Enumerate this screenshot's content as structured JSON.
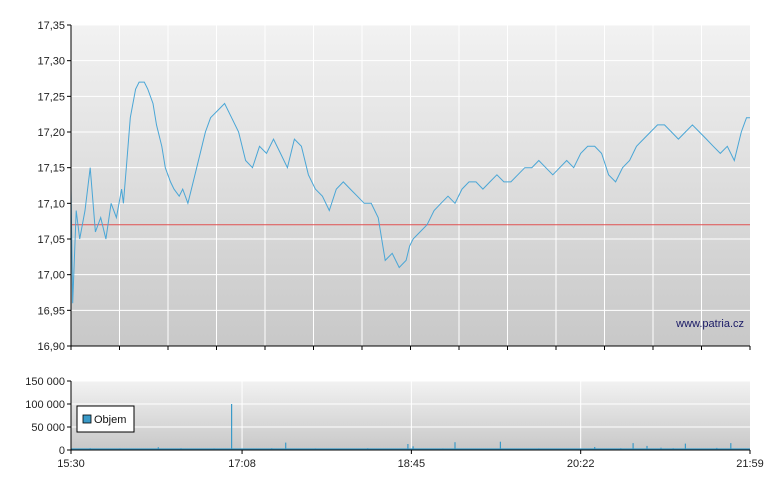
{
  "watermark": "www.patria.cz",
  "colors": {
    "price_line": "#4aa6d6",
    "reference_line": "#e05050",
    "volume_bar": "#3a9ac8",
    "grid": "#ffffff",
    "plot_top": "#f2f2f2",
    "plot_bottom": "#c8c8c8",
    "axis": "#000000"
  },
  "chart_data": [
    {
      "type": "line",
      "name": "price",
      "y_ticks": [
        "17,35",
        "17,30",
        "17,25",
        "17,20",
        "17,15",
        "17,10",
        "17,05",
        "17,00",
        "16,95",
        "16,90"
      ],
      "y_tick_values": [
        17.35,
        17.3,
        17.25,
        17.2,
        17.15,
        17.1,
        17.05,
        17.0,
        16.95,
        16.9
      ],
      "ylim": [
        16.9,
        17.35
      ],
      "x_range_minutes": [
        930,
        1319
      ],
      "reference_value": 17.07,
      "grid": true,
      "x": [
        "15:30",
        "15:31",
        "15:33",
        "15:35",
        "15:38",
        "15:41",
        "15:44",
        "15:47",
        "15:50",
        "15:53",
        "15:56",
        "15:59",
        "16:00",
        "16:02",
        "16:04",
        "16:07",
        "16:09",
        "16:12",
        "16:14",
        "16:17",
        "16:19",
        "16:22",
        "16:24",
        "16:27",
        "16:29",
        "16:32",
        "16:34",
        "16:37",
        "16:40",
        "16:44",
        "16:47",
        "16:50",
        "16:54",
        "16:58",
        "17:02",
        "17:06",
        "17:10",
        "17:14",
        "17:18",
        "17:22",
        "17:26",
        "17:30",
        "17:34",
        "17:38",
        "17:42",
        "17:46",
        "17:50",
        "17:54",
        "17:58",
        "18:02",
        "18:06",
        "18:10",
        "18:14",
        "18:18",
        "18:22",
        "18:26",
        "18:30",
        "18:34",
        "18:38",
        "18:42",
        "18:44",
        "18:46",
        "18:50",
        "18:54",
        "18:58",
        "19:02",
        "19:06",
        "19:10",
        "19:14",
        "19:18",
        "19:22",
        "19:26",
        "19:30",
        "19:34",
        "19:38",
        "19:42",
        "19:46",
        "19:50",
        "19:54",
        "19:58",
        "20:02",
        "20:06",
        "20:10",
        "20:14",
        "20:18",
        "20:22",
        "20:26",
        "20:30",
        "20:34",
        "20:38",
        "20:42",
        "20:46",
        "20:50",
        "20:54",
        "20:58",
        "21:02",
        "21:06",
        "21:10",
        "21:14",
        "21:18",
        "21:22",
        "21:26",
        "21:30",
        "21:34",
        "21:38",
        "21:42",
        "21:46",
        "21:50",
        "21:54",
        "21:57",
        "21:59"
      ],
      "values": [
        17.12,
        16.96,
        17.09,
        17.05,
        17.09,
        17.15,
        17.06,
        17.08,
        17.05,
        17.1,
        17.08,
        17.12,
        17.1,
        17.16,
        17.22,
        17.26,
        17.27,
        17.27,
        17.26,
        17.24,
        17.21,
        17.18,
        17.15,
        17.13,
        17.12,
        17.11,
        17.12,
        17.1,
        17.13,
        17.17,
        17.2,
        17.22,
        17.23,
        17.24,
        17.22,
        17.2,
        17.16,
        17.15,
        17.18,
        17.17,
        17.19,
        17.17,
        17.15,
        17.19,
        17.18,
        17.14,
        17.12,
        17.11,
        17.09,
        17.12,
        17.13,
        17.12,
        17.11,
        17.1,
        17.1,
        17.08,
        17.02,
        17.03,
        17.01,
        17.02,
        17.04,
        17.05,
        17.06,
        17.07,
        17.09,
        17.1,
        17.11,
        17.1,
        17.12,
        17.13,
        17.13,
        17.12,
        17.13,
        17.14,
        17.13,
        17.13,
        17.14,
        17.15,
        17.15,
        17.16,
        17.15,
        17.14,
        17.15,
        17.16,
        17.15,
        17.17,
        17.18,
        17.18,
        17.17,
        17.14,
        17.13,
        17.15,
        17.16,
        17.18,
        17.19,
        17.2,
        17.21,
        17.21,
        17.2,
        17.19,
        17.2,
        17.21,
        17.2,
        17.19,
        17.18,
        17.17,
        17.18,
        17.16,
        17.2,
        17.22,
        17.22
      ]
    },
    {
      "type": "bar",
      "name": "volume",
      "legend": "Objem",
      "legend_placement": "top-left",
      "y_ticks": [
        "150 000",
        "100 000",
        "50 000",
        "0"
      ],
      "y_tick_values": [
        150000,
        100000,
        50000,
        0
      ],
      "ylim": [
        0,
        150000
      ],
      "x_ticks": [
        "15:30",
        "17:08",
        "18:45",
        "20:22",
        "21:59"
      ],
      "x_tick_minutes": [
        930,
        1028,
        1125,
        1222,
        1319
      ],
      "x": [
        "15:34",
        "15:41",
        "15:49",
        "15:58",
        "16:05",
        "16:12",
        "16:20",
        "16:28",
        "16:33",
        "16:40",
        "16:47",
        "16:52",
        "16:58",
        "17:02",
        "17:09",
        "17:13",
        "17:25",
        "17:33",
        "17:40",
        "17:50",
        "18:00",
        "18:10",
        "18:20",
        "18:30",
        "18:40",
        "18:43",
        "18:46",
        "18:55",
        "19:03",
        "19:10",
        "19:18",
        "19:30",
        "19:36",
        "19:48",
        "19:58",
        "20:05",
        "20:12",
        "20:24",
        "20:30",
        "20:38",
        "20:45",
        "20:52",
        "21:00",
        "21:08",
        "21:15",
        "21:22",
        "21:30",
        "21:40",
        "21:48",
        "21:55",
        "21:58"
      ],
      "values": [
        2500,
        4000,
        3000,
        3500,
        2000,
        3000,
        6000,
        2500,
        4000,
        3000,
        2000,
        3500,
        2500,
        100000,
        3000,
        2500,
        4000,
        16000,
        3000,
        3500,
        2500,
        2000,
        4000,
        3000,
        2500,
        13000,
        8000,
        3000,
        3500,
        17000,
        2500,
        3000,
        18000,
        2000,
        3500,
        2500,
        3000,
        2000,
        6500,
        3000,
        4000,
        15000,
        9000,
        5000,
        4000,
        14000,
        3000,
        4500,
        15000,
        2500,
        3000
      ]
    }
  ]
}
